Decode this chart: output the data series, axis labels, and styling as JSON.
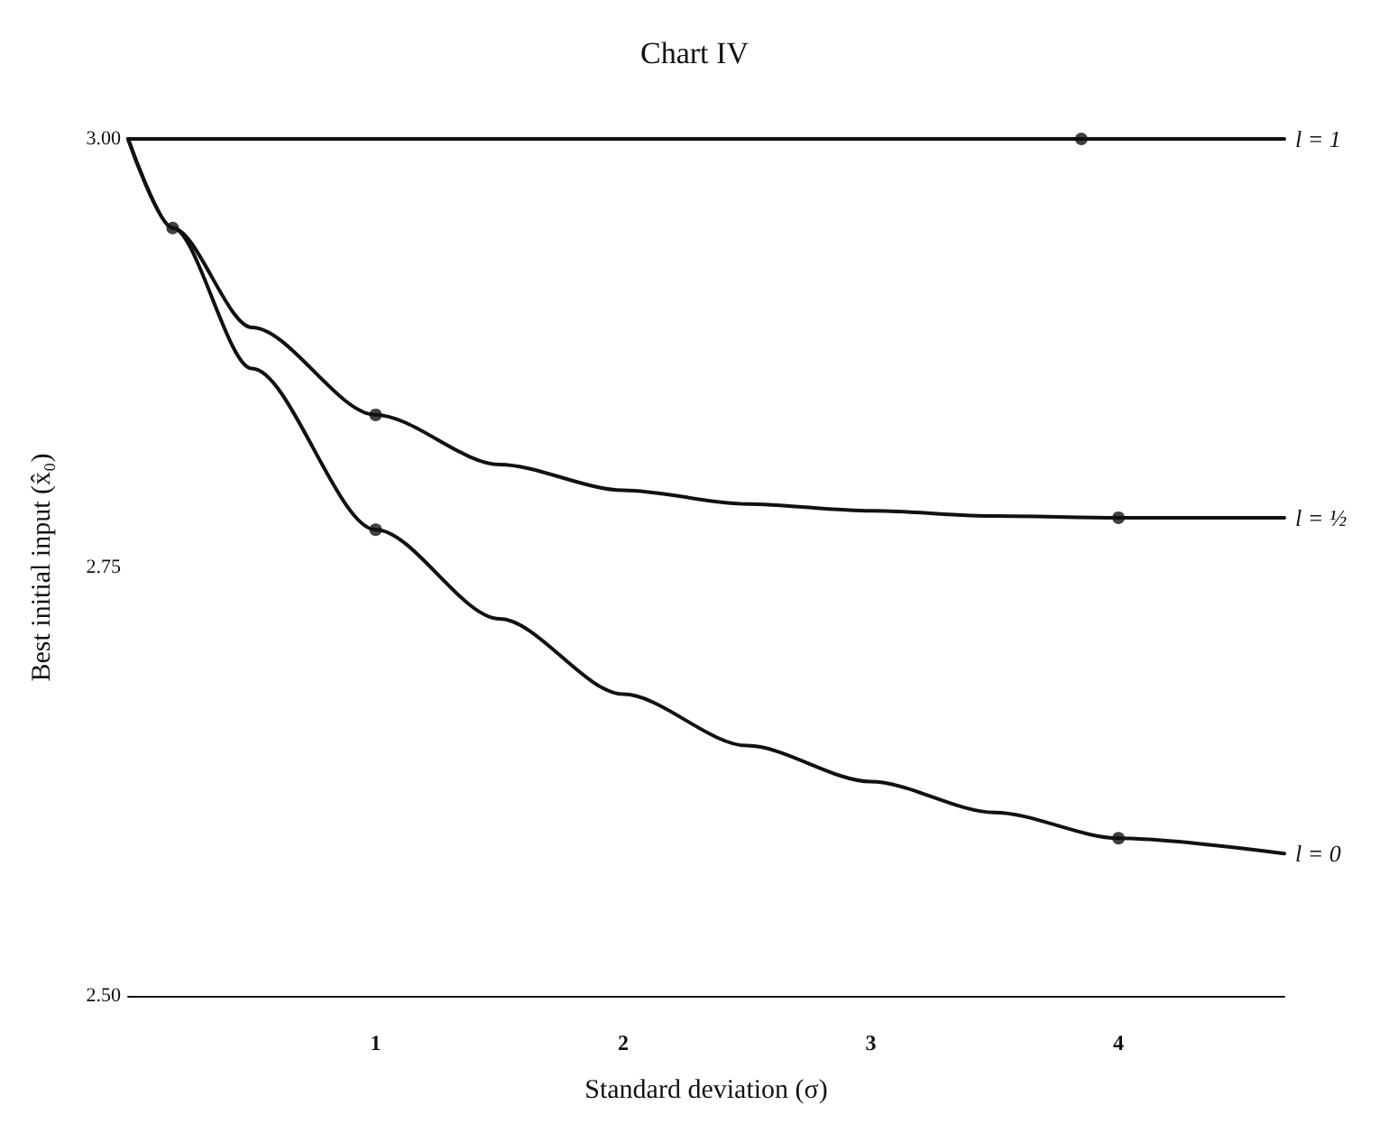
{
  "chart_data": {
    "type": "line",
    "title": "Chart IV",
    "xlabel": "Standard deviation (σ)",
    "ylabel": "Best initial input (x̂₀)",
    "xlim": [
      0,
      4.67
    ],
    "xticks": [
      1,
      2,
      3,
      4
    ],
    "ylim": [
      2.5,
      3.0
    ],
    "yticks": [
      {
        "value": 2.5,
        "label": "2.50"
      },
      {
        "value": 2.75,
        "label": "2.75"
      },
      {
        "value": 3.0,
        "label": "3.00"
      }
    ],
    "grid": false,
    "legend": false,
    "line_style": "solid",
    "series": [
      {
        "name": "l = 1",
        "color": "#111111",
        "x": [
          0,
          4.67
        ],
        "values": [
          3.0,
          3.0
        ]
      },
      {
        "name": "l = ½",
        "color": "#111111",
        "x": [
          0,
          0.18,
          0.5,
          1,
          1.5,
          2,
          2.5,
          3,
          3.5,
          4,
          4.67
        ],
        "values": [
          3.0,
          2.948,
          2.89,
          2.839,
          2.81,
          2.795,
          2.787,
          2.783,
          2.78,
          2.779,
          2.779
        ]
      },
      {
        "name": "l = 0",
        "color": "#111111",
        "x": [
          0,
          0.18,
          0.5,
          1,
          1.5,
          2,
          2.5,
          3,
          3.5,
          4,
          4.67
        ],
        "values": [
          3.0,
          2.948,
          2.866,
          2.772,
          2.72,
          2.676,
          2.646,
          2.625,
          2.607,
          2.592,
          2.583
        ]
      },
      {
        "type": "scatter",
        "color": "#111111",
        "x": [
          3.85,
          0.18,
          1,
          4,
          1,
          4
        ],
        "values": [
          3.0,
          2.948,
          2.839,
          2.779,
          2.772,
          2.592
        ]
      }
    ]
  }
}
